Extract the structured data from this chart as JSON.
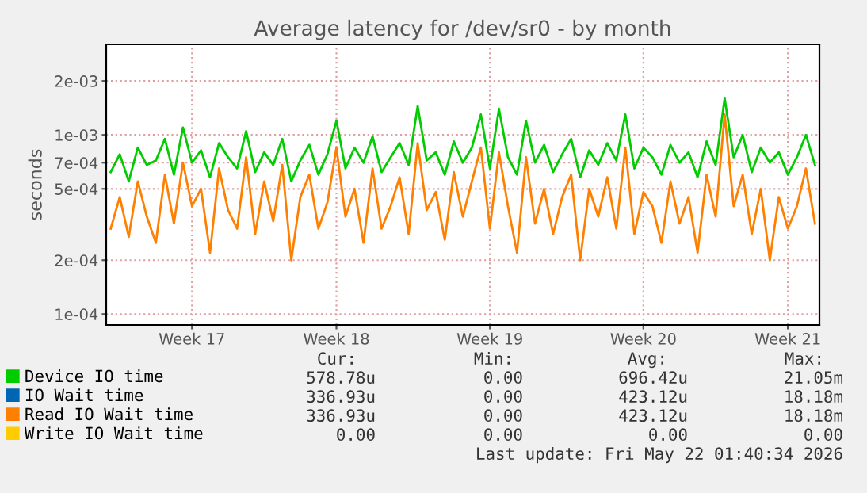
{
  "chart_data": {
    "type": "line",
    "title": "Average latency for /dev/sr0 - by month",
    "ylabel": "seconds",
    "categories": [
      null,
      null,
      null,
      null,
      null,
      null,
      null,
      null,
      null,
      "Week 17",
      null,
      null,
      null,
      null,
      null,
      null,
      null,
      null,
      null,
      null,
      null,
      null,
      null,
      null,
      null,
      "Week 18",
      null,
      null,
      null,
      null,
      null,
      null,
      null,
      null,
      null,
      null,
      null,
      null,
      null,
      null,
      null,
      null,
      "Week 19",
      null,
      null,
      null,
      null,
      null,
      null,
      null,
      null,
      null,
      null,
      null,
      null,
      null,
      null,
      null,
      null,
      "Week 20",
      null,
      null,
      null,
      null,
      null,
      null,
      null,
      null,
      null,
      null,
      null,
      null,
      null,
      null,
      null,
      "Week 21",
      null,
      null,
      null
    ],
    "series": [
      {
        "name": "Device IO time",
        "color": "#00cc00",
        "values": [
          0.00062,
          0.00078,
          0.00055,
          0.00085,
          0.00068,
          0.00072,
          0.00095,
          0.0006,
          0.0011,
          0.0007,
          0.00082,
          0.00058,
          0.0009,
          0.00075,
          0.00065,
          0.00105,
          0.00062,
          0.0008,
          0.00068,
          0.00095,
          0.00055,
          0.00072,
          0.00088,
          0.0006,
          0.00078,
          0.0012,
          0.00065,
          0.00085,
          0.0007,
          0.00098,
          0.00062,
          0.00075,
          0.0009,
          0.00068,
          0.00145,
          0.00072,
          0.0008,
          0.0006,
          0.00092,
          0.0007,
          0.00085,
          0.0013,
          0.00065,
          0.0014,
          0.00075,
          0.0006,
          0.0012,
          0.0007,
          0.00088,
          0.00062,
          0.00078,
          0.00095,
          0.00058,
          0.00082,
          0.00068,
          0.0009,
          0.00072,
          0.0013,
          0.00065,
          0.00085,
          0.00075,
          0.0006,
          0.00088,
          0.0007,
          0.0008,
          0.00058,
          0.00092,
          0.00068,
          0.0016,
          0.00075,
          0.001,
          0.00062,
          0.00085,
          0.0007,
          0.0008,
          0.0006,
          0.00075,
          0.001,
          0.00068
        ]
      },
      {
        "name": "IO Wait time",
        "color": "#0066b3",
        "values": [
          null,
          null,
          null,
          null,
          null,
          null,
          null,
          null,
          null,
          null,
          null,
          null,
          null,
          null,
          null,
          null,
          null,
          null,
          null,
          null,
          null,
          null,
          null,
          null,
          null,
          null,
          null,
          null,
          null,
          null,
          null,
          null,
          null,
          null,
          null,
          null,
          null,
          null,
          null,
          null,
          null,
          null,
          null,
          null,
          null,
          null,
          null,
          null,
          null,
          null,
          null,
          null,
          null,
          null,
          null,
          null,
          null,
          null,
          null,
          null,
          null,
          null,
          null,
          null,
          null,
          null,
          null,
          null,
          null,
          null,
          null,
          null,
          null,
          null,
          null,
          null,
          null,
          null,
          null
        ]
      },
      {
        "name": "Read IO Wait time",
        "color": "#ff8000",
        "values": [
          0.0003,
          0.00045,
          0.00027,
          0.00055,
          0.00035,
          0.00025,
          0.0006,
          0.00032,
          0.0007,
          0.0004,
          0.0005,
          0.00022,
          0.00065,
          0.00038,
          0.0003,
          0.00075,
          0.00028,
          0.00055,
          0.00033,
          0.00068,
          0.0002,
          0.00045,
          0.0006,
          0.0003,
          0.00042,
          0.00085,
          0.00035,
          0.0005,
          0.00025,
          0.00065,
          0.0003,
          0.0004,
          0.00058,
          0.00028,
          0.0009,
          0.00038,
          0.00048,
          0.00026,
          0.00062,
          0.00035,
          0.00055,
          0.00085,
          0.0003,
          0.0008,
          0.0004,
          0.00022,
          0.00075,
          0.00032,
          0.0005,
          0.00028,
          0.00045,
          0.0006,
          0.0002,
          0.0005,
          0.00035,
          0.00058,
          0.0003,
          0.00085,
          0.00028,
          0.00048,
          0.0004,
          0.00025,
          0.00055,
          0.00032,
          0.00045,
          0.00022,
          0.0006,
          0.00035,
          0.0013,
          0.0004,
          0.0006,
          0.00028,
          0.0005,
          0.0002,
          0.00045,
          0.0003,
          0.0004,
          0.00065,
          0.00032
        ]
      },
      {
        "name": "Write IO Wait time",
        "color": "#ffcc00",
        "values": [
          null,
          null,
          null,
          null,
          null,
          null,
          null,
          null,
          null,
          null,
          null,
          null,
          null,
          null,
          null,
          null,
          null,
          null,
          null,
          null,
          null,
          null,
          null,
          null,
          null,
          null,
          null,
          null,
          null,
          null,
          null,
          null,
          null,
          null,
          null,
          null,
          null,
          null,
          null,
          null,
          null,
          null,
          null,
          null,
          null,
          null,
          null,
          null,
          null,
          null,
          null,
          null,
          null,
          null,
          null,
          null,
          null,
          null,
          null,
          null,
          null,
          null,
          null,
          null,
          null,
          null,
          null,
          null,
          null,
          null,
          null,
          null,
          null,
          null,
          null,
          null,
          null,
          null,
          null
        ]
      }
    ],
    "log": "y",
    "ylim": [
      8.7e-05,
      0.0032
    ],
    "yticks": [
      {
        "value": 0.0001,
        "label": "1e-04"
      },
      {
        "value": 0.0002,
        "label": "2e-04"
      },
      {
        "value": 0.0005,
        "label": "5e-04"
      },
      {
        "value": 0.0007,
        "label": "7e-04"
      },
      {
        "value": 0.001,
        "label": "1e-03"
      },
      {
        "value": 0.002,
        "label": "2e-03"
      }
    ],
    "grid": true,
    "legend": "bottom",
    "annotations": [
      "Cur:",
      "Min:",
      "Avg:",
      "Max:",
      "578.78u",
      "0.00",
      "696.42u",
      "21.05m",
      "336.93u",
      "0.00",
      "423.12u",
      "18.18m",
      "336.93u",
      "0.00",
      "423.12u",
      "18.18m",
      "0.00",
      "0.00",
      "0.00",
      "0.00",
      "Last update: Fri May 22 01:40:34 2026"
    ]
  }
}
